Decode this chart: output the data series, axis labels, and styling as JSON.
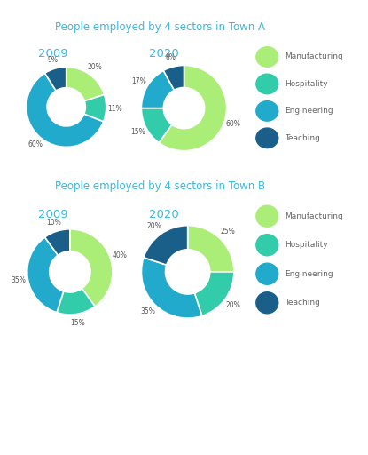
{
  "title_a": "People employed by 4 sectors in Town A",
  "title_b": "People employed by 4 sectors in Town B",
  "title_color": "#3ab8e0",
  "year_color": "#3ab8e0",
  "background_color": "#ffffff",
  "sectors": [
    "Manufacturing",
    "Hospitality",
    "Engineering",
    "Teaching"
  ],
  "colors": [
    "#aaee77",
    "#33ccaa",
    "#22aacc",
    "#1a5f8a"
  ],
  "town_a": {
    "2009": [
      20,
      11,
      60,
      9
    ],
    "2020": [
      60,
      15,
      17,
      8
    ]
  },
  "town_b": {
    "2009": [
      40,
      15,
      35,
      10
    ],
    "2020": [
      25,
      20,
      35,
      20
    ]
  },
  "town_a_labels_2009": [
    "20%",
    "11%",
    "60%",
    "9%"
  ],
  "town_a_labels_2020": [
    "60%",
    "15%",
    "17%",
    "8%"
  ],
  "town_b_labels_2009": [
    "40%",
    "15%",
    "35%",
    "10%"
  ],
  "town_b_labels_2020": [
    "25%",
    "20%",
    "35%",
    "20%"
  ]
}
